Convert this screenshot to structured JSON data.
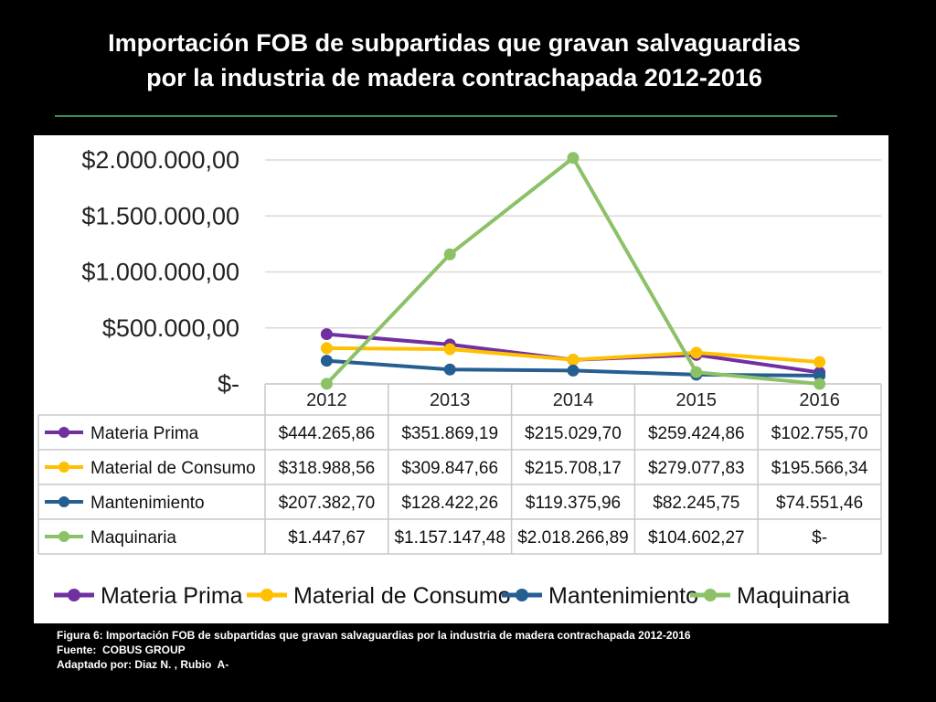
{
  "slide": {
    "title_line1": "Importación FOB de subpartidas que gravan salvaguardias",
    "title_line2": "por la industria de madera contrachapada 2012-2016",
    "caption_line1": "Figura 6: Importación FOB de subpartidas que gravan salvaguardias por la industria de madera contrachapada 2012-2016",
    "caption_line2": "Fuente:  COBUS GROUP",
    "caption_line3": "Adaptado por: Diaz N. , Rubio  A-"
  },
  "chart_data": {
    "type": "line",
    "title": "",
    "xlabel": "",
    "ylabel": "",
    "categories": [
      "2012",
      "2013",
      "2014",
      "2015",
      "2016"
    ],
    "ylim": [
      0,
      2000000
    ],
    "yticks": [
      {
        "value": 2000000,
        "label": "$2.000.000,00"
      },
      {
        "value": 1500000,
        "label": "$1.500.000,00"
      },
      {
        "value": 1000000,
        "label": "$1.000.000,00"
      },
      {
        "value": 500000,
        "label": "$500.000,00"
      },
      {
        "value": 0,
        "label": "$-"
      }
    ],
    "grid": true,
    "legend_position": "bottom",
    "data_table": true,
    "series": [
      {
        "name": "Materia Prima",
        "color": "#7030a0",
        "values": [
          444265.86,
          351869.19,
          215029.7,
          259424.86,
          102755.7
        ],
        "labels": [
          "$444.265,86",
          "$351.869,19",
          "$215.029,70",
          "$259.424,86",
          "$102.755,70"
        ]
      },
      {
        "name": "Material de Consumo",
        "color": "#ffc000",
        "values": [
          318988.56,
          309847.66,
          215708.17,
          279077.83,
          195566.34
        ],
        "labels": [
          "$318.988,56",
          "$309.847,66",
          "$215.708,17",
          "$279.077,83",
          "$195.566,34"
        ]
      },
      {
        "name": "Mantenimiento",
        "color": "#255e91",
        "values": [
          207382.7,
          128422.26,
          119375.96,
          82245.75,
          74551.46
        ],
        "labels": [
          "$207.382,70",
          "$128.422,26",
          "$119.375,96",
          "$82.245,75",
          "$74.551,46"
        ]
      },
      {
        "name": "Maquinaria",
        "color": "#8cc168",
        "values": [
          1447.67,
          1157147.48,
          2018266.89,
          104602.27,
          0
        ],
        "labels": [
          "$1.447,67",
          "$1.157.147,48",
          "$2.018.266,89",
          "$104.602,27",
          "$-"
        ]
      }
    ]
  }
}
